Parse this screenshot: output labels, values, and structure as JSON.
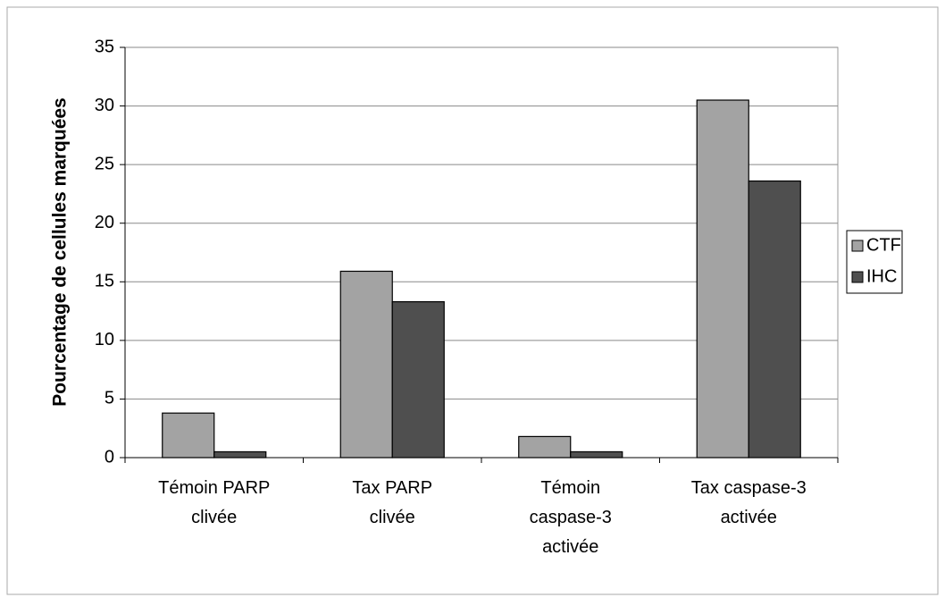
{
  "chart_data": {
    "type": "bar",
    "y_label": "Pourcentage de cellules marquées",
    "categories": [
      "Témoin PARP\nclivée",
      "Tax PARP\nclivée",
      "Témoin\ncaspase-3\nactivée",
      "Tax caspase-3\nactivée"
    ],
    "series": [
      {
        "name": "CTF",
        "color": "#a3a3a3",
        "values": [
          3.8,
          15.9,
          1.8,
          30.5
        ]
      },
      {
        "name": "IHC",
        "color": "#4f4f4f",
        "values": [
          0.5,
          13.3,
          0.5,
          23.6
        ]
      }
    ],
    "ylim": [
      0,
      35
    ],
    "yticks": [
      0,
      5,
      10,
      15,
      20,
      25,
      30,
      35
    ],
    "grid": true,
    "legend": "right"
  }
}
